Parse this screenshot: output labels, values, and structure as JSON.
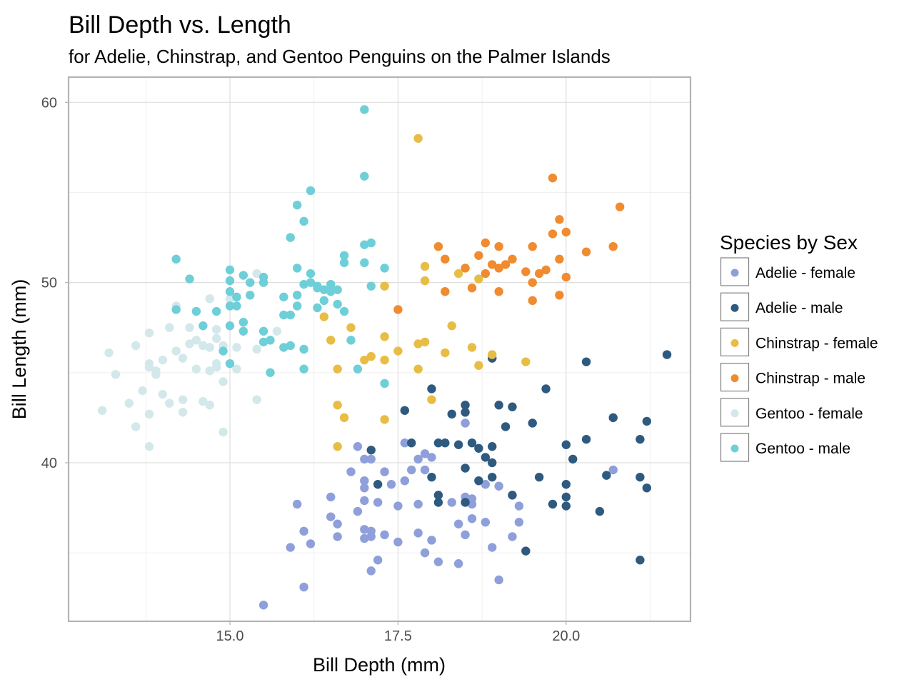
{
  "chart_data": {
    "type": "scatter",
    "title": "Bill Depth vs. Length",
    "subtitle": "for Adelie, Chinstrap, and Gentoo Penguins on the Palmer Islands",
    "xlabel": "Bill Depth (mm)",
    "ylabel": "Bill Length (mm)",
    "xlim": [
      12.6,
      21.85
    ],
    "ylim": [
      31.2,
      61.4
    ],
    "x_ticks": [
      "15.0",
      "17.5",
      "20.0"
    ],
    "y_ticks": [
      "40",
      "50",
      "60"
    ],
    "grid": true,
    "legend": {
      "title": "Species by Sex",
      "position": "right"
    },
    "series": [
      {
        "name": "Adelie - female",
        "color": "#8e9fda",
        "points": [
          [
            15.5,
            32.1
          ],
          [
            16.1,
            33.1
          ],
          [
            16.1,
            36.2
          ],
          [
            16.2,
            35.5
          ],
          [
            16.0,
            37.7
          ],
          [
            15.9,
            35.3
          ],
          [
            16.5,
            38.1
          ],
          [
            16.5,
            37.0
          ],
          [
            16.6,
            36.6
          ],
          [
            16.6,
            35.9
          ],
          [
            16.8,
            39.5
          ],
          [
            16.9,
            40.9
          ],
          [
            16.9,
            37.3
          ],
          [
            17.0,
            40.2
          ],
          [
            17.0,
            39.0
          ],
          [
            17.0,
            38.6
          ],
          [
            17.0,
            37.9
          ],
          [
            17.0,
            36.3
          ],
          [
            17.0,
            35.8
          ],
          [
            17.1,
            40.2
          ],
          [
            17.1,
            36.2
          ],
          [
            17.1,
            35.9
          ],
          [
            17.1,
            34.0
          ],
          [
            17.2,
            37.8
          ],
          [
            17.2,
            34.6
          ],
          [
            17.3,
            39.5
          ],
          [
            17.3,
            36.0
          ],
          [
            17.4,
            38.8
          ],
          [
            17.5,
            37.6
          ],
          [
            17.5,
            35.6
          ],
          [
            17.6,
            41.1
          ],
          [
            17.6,
            39.0
          ],
          [
            17.7,
            39.6
          ],
          [
            17.8,
            40.2
          ],
          [
            17.8,
            37.7
          ],
          [
            17.8,
            36.1
          ],
          [
            17.9,
            40.5
          ],
          [
            17.9,
            39.6
          ],
          [
            17.9,
            35.0
          ],
          [
            18.0,
            40.3
          ],
          [
            18.0,
            35.7
          ],
          [
            18.1,
            34.5
          ],
          [
            18.3,
            37.8
          ],
          [
            18.4,
            36.6
          ],
          [
            18.4,
            34.4
          ],
          [
            18.5,
            42.2
          ],
          [
            18.5,
            38.1
          ],
          [
            18.5,
            36.0
          ],
          [
            18.6,
            38.0
          ],
          [
            18.6,
            37.7
          ],
          [
            18.6,
            36.9
          ],
          [
            18.8,
            38.8
          ],
          [
            18.8,
            36.7
          ],
          [
            18.9,
            35.3
          ],
          [
            19.0,
            38.7
          ],
          [
            19.0,
            33.5
          ],
          [
            19.2,
            35.9
          ],
          [
            19.3,
            37.6
          ],
          [
            19.3,
            36.7
          ],
          [
            20.7,
            39.6
          ]
        ]
      },
      {
        "name": "Adelie - male",
        "color": "#2f5a80",
        "points": [
          [
            17.1,
            40.7
          ],
          [
            17.2,
            38.8
          ],
          [
            17.6,
            42.9
          ],
          [
            17.7,
            41.1
          ],
          [
            18.0,
            44.1
          ],
          [
            18.0,
            39.2
          ],
          [
            18.1,
            41.1
          ],
          [
            18.1,
            38.2
          ],
          [
            18.1,
            37.8
          ],
          [
            18.2,
            41.1
          ],
          [
            18.3,
            42.7
          ],
          [
            18.4,
            41.0
          ],
          [
            18.5,
            43.2
          ],
          [
            18.5,
            42.8
          ],
          [
            18.5,
            39.7
          ],
          [
            18.5,
            37.8
          ],
          [
            18.6,
            41.1
          ],
          [
            18.7,
            40.8
          ],
          [
            18.7,
            39.0
          ],
          [
            18.8,
            40.3
          ],
          [
            18.9,
            45.8
          ],
          [
            18.9,
            40.9
          ],
          [
            18.9,
            40.0
          ],
          [
            18.9,
            39.2
          ],
          [
            19.0,
            43.2
          ],
          [
            19.1,
            42.0
          ],
          [
            19.2,
            43.1
          ],
          [
            19.2,
            38.2
          ],
          [
            19.4,
            35.1
          ],
          [
            19.5,
            42.2
          ],
          [
            19.6,
            39.2
          ],
          [
            19.7,
            44.1
          ],
          [
            19.8,
            37.7
          ],
          [
            20.0,
            41.0
          ],
          [
            20.0,
            38.8
          ],
          [
            20.0,
            38.1
          ],
          [
            20.0,
            37.6
          ],
          [
            20.1,
            40.2
          ],
          [
            20.3,
            45.6
          ],
          [
            20.3,
            41.3
          ],
          [
            20.5,
            37.3
          ],
          [
            20.6,
            39.3
          ],
          [
            20.7,
            42.5
          ],
          [
            21.1,
            41.3
          ],
          [
            21.1,
            39.2
          ],
          [
            21.1,
            34.6
          ],
          [
            21.2,
            42.3
          ],
          [
            21.2,
            38.6
          ],
          [
            21.5,
            46.0
          ]
        ]
      },
      {
        "name": "Chinstrap - female",
        "color": "#e8bd45",
        "points": [
          [
            16.4,
            48.1
          ],
          [
            16.5,
            46.8
          ],
          [
            16.6,
            45.2
          ],
          [
            16.6,
            43.2
          ],
          [
            16.6,
            40.9
          ],
          [
            16.7,
            42.5
          ],
          [
            16.8,
            47.5
          ],
          [
            17.0,
            45.7
          ],
          [
            17.1,
            45.9
          ],
          [
            17.3,
            49.8
          ],
          [
            17.3,
            47.0
          ],
          [
            17.3,
            45.7
          ],
          [
            17.3,
            42.4
          ],
          [
            17.5,
            46.2
          ],
          [
            17.8,
            58.0
          ],
          [
            17.8,
            46.6
          ],
          [
            17.8,
            45.2
          ],
          [
            17.9,
            50.9
          ],
          [
            17.9,
            50.1
          ],
          [
            17.9,
            46.7
          ],
          [
            18.0,
            43.5
          ],
          [
            18.2,
            46.1
          ],
          [
            18.3,
            47.6
          ],
          [
            18.4,
            50.5
          ],
          [
            18.6,
            46.4
          ],
          [
            18.7,
            50.2
          ],
          [
            18.7,
            45.4
          ],
          [
            18.9,
            46.0
          ],
          [
            19.4,
            45.6
          ]
        ]
      },
      {
        "name": "Chinstrap - male",
        "color": "#f08b2f",
        "points": [
          [
            17.5,
            48.5
          ],
          [
            18.1,
            52.0
          ],
          [
            18.2,
            51.3
          ],
          [
            18.2,
            49.5
          ],
          [
            18.5,
            50.8
          ],
          [
            18.6,
            49.7
          ],
          [
            18.7,
            51.5
          ],
          [
            18.8,
            52.2
          ],
          [
            18.8,
            50.5
          ],
          [
            18.9,
            51.0
          ],
          [
            19.0,
            52.0
          ],
          [
            19.0,
            50.8
          ],
          [
            19.0,
            49.5
          ],
          [
            19.1,
            51.0
          ],
          [
            19.2,
            51.3
          ],
          [
            19.4,
            50.6
          ],
          [
            19.5,
            52.0
          ],
          [
            19.5,
            50.0
          ],
          [
            19.5,
            49.0
          ],
          [
            19.6,
            50.5
          ],
          [
            19.7,
            50.7
          ],
          [
            19.8,
            55.8
          ],
          [
            19.8,
            52.7
          ],
          [
            19.9,
            53.5
          ],
          [
            19.9,
            51.3
          ],
          [
            19.9,
            49.3
          ],
          [
            20.0,
            52.8
          ],
          [
            20.0,
            50.3
          ],
          [
            20.3,
            51.7
          ],
          [
            20.7,
            52.0
          ],
          [
            20.8,
            54.2
          ]
        ]
      },
      {
        "name": "Gentoo - female",
        "color": "#d3e8ea",
        "points": [
          [
            13.1,
            42.9
          ],
          [
            13.2,
            46.1
          ],
          [
            13.3,
            44.9
          ],
          [
            13.5,
            43.3
          ],
          [
            13.6,
            46.5
          ],
          [
            13.6,
            42.0
          ],
          [
            13.7,
            44.0
          ],
          [
            13.8,
            47.2
          ],
          [
            13.8,
            45.5
          ],
          [
            13.8,
            45.3
          ],
          [
            13.8,
            42.7
          ],
          [
            13.8,
            40.9
          ],
          [
            13.9,
            45.1
          ],
          [
            13.9,
            44.9
          ],
          [
            14.0,
            45.7
          ],
          [
            14.0,
            43.8
          ],
          [
            14.1,
            47.5
          ],
          [
            14.1,
            43.3
          ],
          [
            14.2,
            48.7
          ],
          [
            14.2,
            46.2
          ],
          [
            14.3,
            45.8
          ],
          [
            14.3,
            43.5
          ],
          [
            14.3,
            42.8
          ],
          [
            14.4,
            47.5
          ],
          [
            14.4,
            46.6
          ],
          [
            14.5,
            48.4
          ],
          [
            14.5,
            46.8
          ],
          [
            14.5,
            45.2
          ],
          [
            14.6,
            46.5
          ],
          [
            14.6,
            43.4
          ],
          [
            14.7,
            49.1
          ],
          [
            14.7,
            46.4
          ],
          [
            14.7,
            45.1
          ],
          [
            14.7,
            43.2
          ],
          [
            14.8,
            47.4
          ],
          [
            14.8,
            46.9
          ],
          [
            14.8,
            45.5
          ],
          [
            14.8,
            45.3
          ],
          [
            14.9,
            46.5
          ],
          [
            14.9,
            44.5
          ],
          [
            14.9,
            41.7
          ],
          [
            15.0,
            49.1
          ],
          [
            15.1,
            46.4
          ],
          [
            15.1,
            45.2
          ],
          [
            15.2,
            47.8
          ],
          [
            15.4,
            50.5
          ],
          [
            15.4,
            46.3
          ],
          [
            15.4,
            43.5
          ],
          [
            15.7,
            47.3
          ]
        ]
      },
      {
        "name": "Gentoo - male",
        "color": "#6ecfd8",
        "points": [
          [
            14.2,
            51.3
          ],
          [
            14.2,
            48.5
          ],
          [
            14.4,
            50.2
          ],
          [
            14.5,
            48.4
          ],
          [
            14.6,
            47.6
          ],
          [
            14.8,
            48.4
          ],
          [
            14.9,
            46.2
          ],
          [
            15.0,
            50.7
          ],
          [
            15.0,
            50.1
          ],
          [
            15.0,
            49.5
          ],
          [
            15.0,
            48.7
          ],
          [
            15.0,
            47.6
          ],
          [
            15.0,
            45.5
          ],
          [
            15.1,
            49.2
          ],
          [
            15.1,
            48.7
          ],
          [
            15.2,
            50.4
          ],
          [
            15.2,
            47.8
          ],
          [
            15.2,
            47.3
          ],
          [
            15.3,
            50.0
          ],
          [
            15.3,
            49.3
          ],
          [
            15.5,
            50.3
          ],
          [
            15.5,
            50.0
          ],
          [
            15.5,
            47.3
          ],
          [
            15.5,
            46.7
          ],
          [
            15.6,
            46.8
          ],
          [
            15.6,
            45.0
          ],
          [
            15.8,
            49.2
          ],
          [
            15.8,
            48.2
          ],
          [
            15.8,
            46.4
          ],
          [
            15.9,
            52.5
          ],
          [
            15.9,
            48.2
          ],
          [
            15.9,
            46.5
          ],
          [
            16.0,
            54.3
          ],
          [
            16.0,
            50.8
          ],
          [
            16.0,
            49.3
          ],
          [
            16.0,
            48.7
          ],
          [
            16.1,
            53.4
          ],
          [
            16.1,
            49.9
          ],
          [
            16.1,
            46.3
          ],
          [
            16.1,
            45.2
          ],
          [
            16.2,
            55.1
          ],
          [
            16.2,
            50.5
          ],
          [
            16.2,
            50.0
          ],
          [
            16.3,
            49.8
          ],
          [
            16.3,
            49.7
          ],
          [
            16.3,
            48.6
          ],
          [
            16.4,
            49.6
          ],
          [
            16.4,
            49.0
          ],
          [
            16.5,
            49.9
          ],
          [
            16.5,
            49.5
          ],
          [
            16.6,
            49.6
          ],
          [
            16.6,
            48.8
          ],
          [
            16.7,
            51.5
          ],
          [
            16.7,
            51.1
          ],
          [
            16.7,
            48.4
          ],
          [
            16.8,
            46.8
          ],
          [
            16.9,
            45.2
          ],
          [
            17.0,
            51.1
          ],
          [
            17.1,
            49.8
          ],
          [
            17.0,
            59.6
          ],
          [
            17.0,
            55.9
          ],
          [
            17.0,
            52.1
          ],
          [
            17.1,
            52.2
          ],
          [
            17.3,
            50.8
          ],
          [
            17.3,
            44.4
          ]
        ]
      }
    ]
  }
}
